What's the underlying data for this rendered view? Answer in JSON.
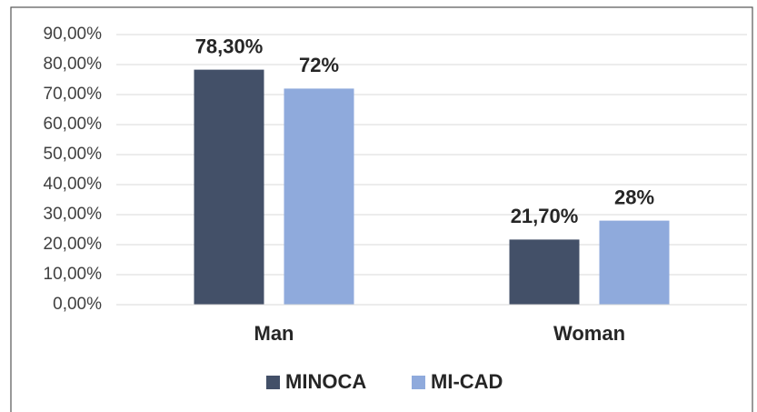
{
  "chart_data": {
    "type": "bar",
    "categories": [
      "Man",
      "Woman"
    ],
    "series": [
      {
        "name": "MINOCA",
        "color": "#435068",
        "values": [
          78.3,
          21.7
        ],
        "value_labels": [
          "78,30%",
          "21,70%"
        ]
      },
      {
        "name": "MI-CAD",
        "color": "#8faadc",
        "values": [
          72,
          28
        ],
        "value_labels": [
          "72%",
          "28%"
        ]
      }
    ],
    "ylim": [
      0,
      90
    ],
    "yticks": [
      {
        "value": 0,
        "label": "0,00%"
      },
      {
        "value": 10,
        "label": "10,00%"
      },
      {
        "value": 20,
        "label": "20,00%"
      },
      {
        "value": 30,
        "label": "30,00%"
      },
      {
        "value": 40,
        "label": "40,00%"
      },
      {
        "value": 50,
        "label": "50,00%"
      },
      {
        "value": 60,
        "label": "60,00%"
      },
      {
        "value": 70,
        "label": "70,00%"
      },
      {
        "value": 80,
        "label": "80,00%"
      },
      {
        "value": 90,
        "label": "90,00%"
      }
    ],
    "grid": true,
    "legend": "bottom"
  }
}
